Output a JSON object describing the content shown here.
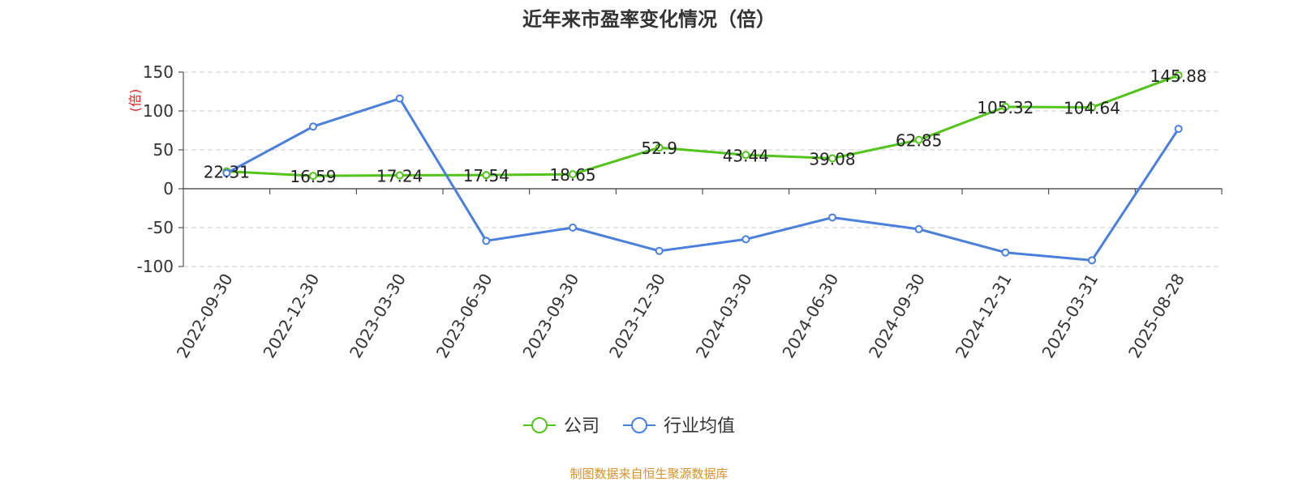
{
  "chart_data": {
    "type": "line",
    "title": "近年来市盈率变化情况（倍）",
    "ylabel": "(倍)",
    "ylim": [
      -100,
      150
    ],
    "yticks": [
      -100,
      -50,
      0,
      50,
      100,
      150
    ],
    "grid": true,
    "legend_position": "bottom-center",
    "categories": [
      "2022-09-30",
      "2022-12-30",
      "2023-03-30",
      "2023-06-30",
      "2023-09-30",
      "2023-12-30",
      "2024-03-30",
      "2024-06-30",
      "2024-09-30",
      "2024-12-31",
      "2025-03-31",
      "2025-08-28"
    ],
    "series": [
      {
        "name": "公司",
        "color": "#52c41a",
        "values": [
          22.31,
          16.59,
          17.24,
          17.54,
          18.65,
          52.9,
          43.44,
          39.08,
          62.85,
          105.32,
          104.64,
          145.88
        ],
        "labels": [
          "22.31",
          "16.59",
          "17.24",
          "17.54",
          "18.65",
          "52.9",
          "43.44",
          "39.08",
          "62.85",
          "105.32",
          "104.64",
          "145.88"
        ]
      },
      {
        "name": "行业均值",
        "color": "#4a7fdc",
        "values": [
          20,
          80,
          116,
          -67,
          -50,
          -80,
          -65,
          -37,
          -52,
          -82,
          -92,
          77
        ]
      }
    ]
  },
  "source": "制图数据来自恒生聚源数据库"
}
